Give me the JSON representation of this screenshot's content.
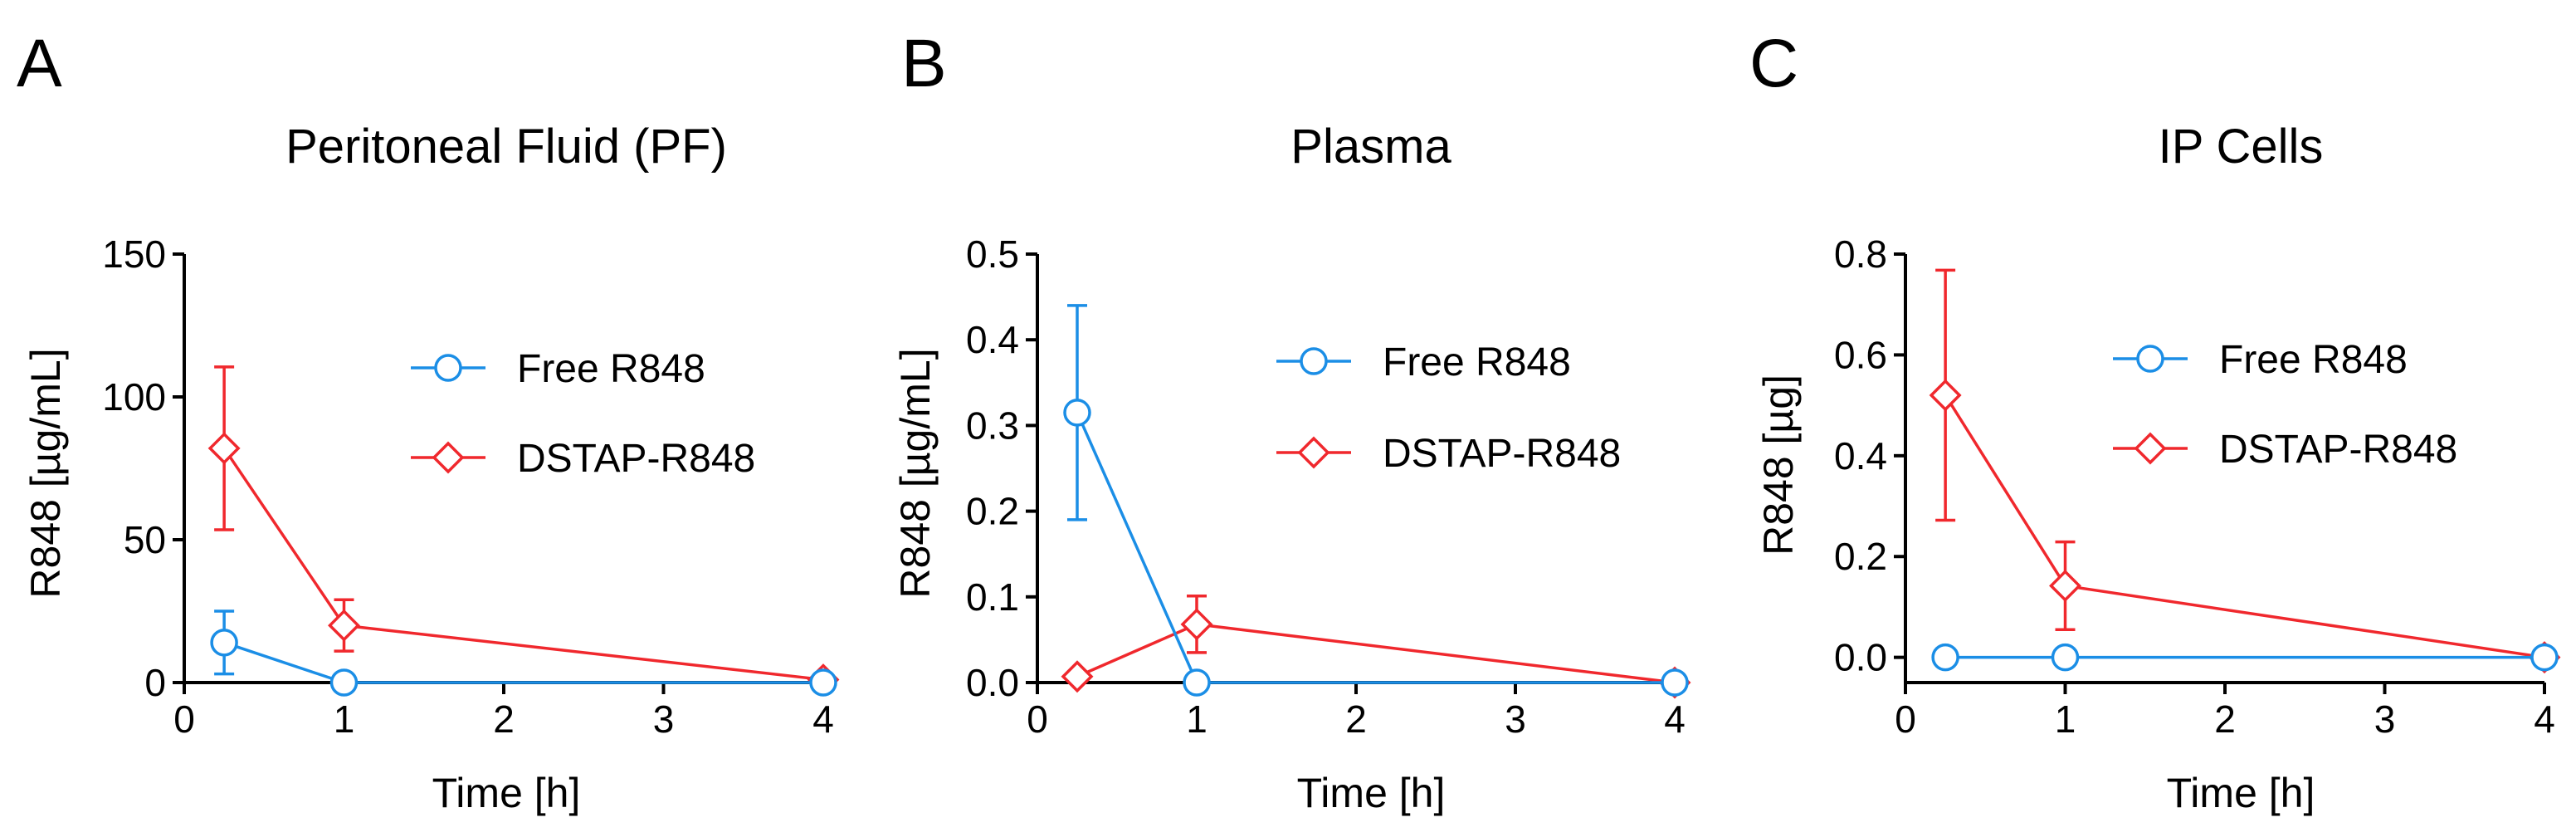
{
  "colors": {
    "free": "#1b8ee6",
    "dstap": "#f0282d",
    "axis": "#000000"
  },
  "legend": {
    "free_label": "Free R848",
    "dstap_label": "DSTAP-R848"
  },
  "chart_data": [
    {
      "type": "line",
      "panel": "A",
      "title": "Peritoneal Fluid (PF)",
      "xlabel": "Time [h]",
      "ylabel": "R848 [µg/mL]",
      "xlim": [
        0,
        4
      ],
      "ylim": [
        0,
        150
      ],
      "xticks": [
        0,
        1,
        2,
        3,
        4
      ],
      "xtick_labels": [
        "0",
        "1",
        "2",
        "3",
        "4"
      ],
      "yticks": [
        0,
        50,
        100,
        150
      ],
      "ytick_labels": [
        "0",
        "50",
        "100",
        "150"
      ],
      "legend_position": "upper-right",
      "series": [
        {
          "name": "Free R848",
          "marker": "circle",
          "x": [
            0.25,
            1,
            4
          ],
          "y": [
            14,
            0,
            0
          ],
          "err": [
            11,
            0,
            0
          ]
        },
        {
          "name": "DSTAP-R848",
          "marker": "diamond",
          "x": [
            0.25,
            1,
            4
          ],
          "y": [
            82,
            20,
            1
          ],
          "err": [
            28.5,
            9,
            0
          ]
        }
      ]
    },
    {
      "type": "line",
      "panel": "B",
      "title": "Plasma",
      "xlabel": "Time [h]",
      "ylabel": "R848 [µg/mL]",
      "xlim": [
        0,
        4
      ],
      "ylim": [
        0,
        0.5
      ],
      "xticks": [
        0,
        1,
        2,
        3,
        4
      ],
      "xtick_labels": [
        "0",
        "1",
        "2",
        "3",
        "4"
      ],
      "yticks": [
        0,
        0.1,
        0.2,
        0.3,
        0.4,
        0.5
      ],
      "ytick_labels": [
        "0.0",
        "0.1",
        "0.2",
        "0.3",
        "0.4",
        "0.5"
      ],
      "legend_position": "upper-right",
      "series": [
        {
          "name": "Free R848",
          "marker": "circle",
          "x": [
            0.25,
            1,
            4
          ],
          "y": [
            0.315,
            0,
            0
          ],
          "err": [
            0.125,
            0,
            0
          ]
        },
        {
          "name": "DSTAP-R848",
          "marker": "diamond",
          "x": [
            0.25,
            1,
            4
          ],
          "y": [
            0.007,
            0.068,
            0
          ],
          "err": [
            0,
            0.033,
            0
          ]
        }
      ]
    },
    {
      "type": "line",
      "panel": "C",
      "title": "IP Cells",
      "xlabel": "Time [h]",
      "ylabel": "R848 [µg]",
      "xlim": [
        0,
        4
      ],
      "ylim": [
        -0.05,
        0.8
      ],
      "xticks": [
        0,
        1,
        2,
        3,
        4
      ],
      "xtick_labels": [
        "0",
        "1",
        "2",
        "3",
        "4"
      ],
      "yticks": [
        0,
        0.2,
        0.4,
        0.6,
        0.8
      ],
      "ytick_labels": [
        "0.0",
        "0.2",
        "0.4",
        "0.6",
        "0.8"
      ],
      "legend_position": "upper-right",
      "series": [
        {
          "name": "Free R848",
          "marker": "circle",
          "x": [
            0.25,
            1,
            4
          ],
          "y": [
            0,
            0,
            0
          ],
          "err": [
            0,
            0,
            0
          ]
        },
        {
          "name": "DSTAP-R848",
          "marker": "diamond",
          "x": [
            0.25,
            1,
            4
          ],
          "y": [
            0.52,
            0.142,
            0
          ],
          "err": [
            0.248,
            0.087,
            0
          ]
        }
      ]
    }
  ]
}
